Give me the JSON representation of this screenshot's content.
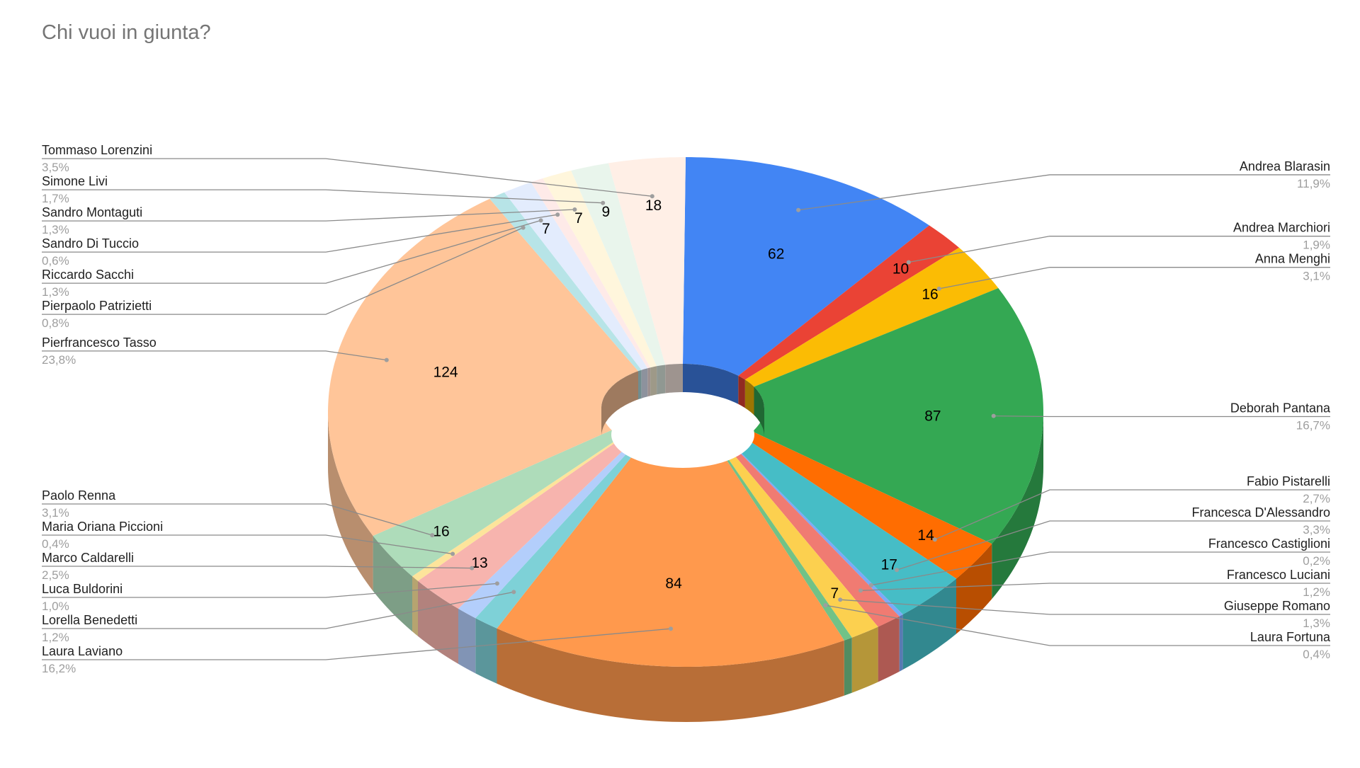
{
  "chart_data": {
    "type": "pie",
    "title": "Chi vuoi in giunta?",
    "style": "3d-donut",
    "legend": "none",
    "slices": [
      {
        "name": "Andrea Blarasin",
        "value": 62,
        "percent": "11,9%",
        "color": "#4285f4"
      },
      {
        "name": "Andrea Marchiori",
        "value": 10,
        "percent": "1,9%",
        "color": "#ea4335"
      },
      {
        "name": "Anna Menghi",
        "value": 16,
        "percent": "3,1%",
        "color": "#fbbc04"
      },
      {
        "name": "Deborah Pantana",
        "value": 87,
        "percent": "16,7%",
        "color": "#34a853"
      },
      {
        "name": "Fabio Pistarelli",
        "value": 14,
        "percent": "2,7%",
        "color": "#ff6d01"
      },
      {
        "name": "Francesca D'Alessandro",
        "value": 17,
        "percent": "3,3%",
        "color": "#46bdc6"
      },
      {
        "name": "Francesco Castiglioni",
        "value": 1,
        "percent": "0,2%",
        "color": "#7baaf7"
      },
      {
        "name": "Francesco Luciani",
        "value": 6,
        "percent": "1,2%",
        "color": "#f07b72"
      },
      {
        "name": "Giuseppe Romano",
        "value": 7,
        "percent": "1,3%",
        "color": "#fcd04f"
      },
      {
        "name": "Laura Fortuna",
        "value": 2,
        "percent": "0,4%",
        "color": "#71c287"
      },
      {
        "name": "Laura Laviano",
        "value": 84,
        "percent": "16,2%",
        "color": "#ff994d"
      },
      {
        "name": "Lorella Benedetti",
        "value": 6,
        "percent": "1,2%",
        "color": "#7ed1d7"
      },
      {
        "name": "Luca Buldorini",
        "value": 5,
        "percent": "1,0%",
        "color": "#b3cefb"
      },
      {
        "name": "Marco Caldarelli",
        "value": 13,
        "percent": "2,5%",
        "color": "#f7b4ae"
      },
      {
        "name": "Maria Oriana Piccioni",
        "value": 2,
        "percent": "0,4%",
        "color": "#fde49b"
      },
      {
        "name": "Paolo Renna",
        "value": 16,
        "percent": "3,1%",
        "color": "#aedcba"
      },
      {
        "name": "Pierfrancesco Tasso",
        "value": 124,
        "percent": "23,8%",
        "color": "#ffc599"
      },
      {
        "name": "Pierpaolo Patrizietti",
        "value": 4,
        "percent": "0,8%",
        "color": "#b7e4e7"
      },
      {
        "name": "Riccardo Sacchi",
        "value": 7,
        "percent": "1,3%",
        "color": "#e3ecfd"
      },
      {
        "name": "Sandro Di Tuccio",
        "value": 3,
        "percent": "0,6%",
        "color": "#feeae8"
      },
      {
        "name": "Sandro Montaguti",
        "value": 7,
        "percent": "1,3%",
        "color": "#fff6dc"
      },
      {
        "name": "Simone Livi",
        "value": 9,
        "percent": "1,7%",
        "color": "#e9f5ec"
      },
      {
        "name": "Tommaso Lorenzini",
        "value": 18,
        "percent": "3,5%",
        "color": "#ffefe6"
      }
    ],
    "value_labels_shown": [
      62,
      10,
      16,
      87,
      14,
      17,
      7,
      84,
      13,
      16,
      124,
      7,
      7,
      9,
      18
    ]
  }
}
